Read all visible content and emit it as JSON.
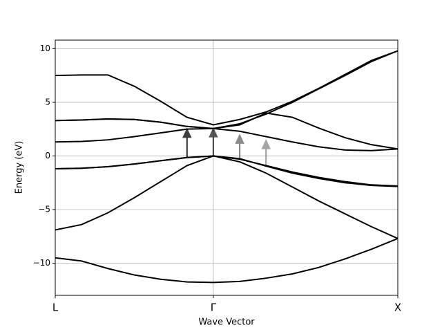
{
  "chart_data": {
    "type": "line",
    "xlabel": "Wave Vector",
    "ylabel": "Energy (eV)",
    "x": [
      0,
      1,
      2,
      3,
      4,
      5,
      6,
      7,
      8,
      9,
      10,
      11,
      12,
      13
    ],
    "xlim": [
      0,
      13
    ],
    "xticks": [
      {
        "value": 0,
        "label": "L"
      },
      {
        "value": 6,
        "label": "Γ"
      },
      {
        "value": 13,
        "label": "X"
      }
    ],
    "ylim": [
      -13,
      10.8
    ],
    "yticks": [
      {
        "value": -10,
        "label": "−10"
      },
      {
        "value": -5,
        "label": "−5"
      },
      0,
      5,
      10
    ],
    "grid": true,
    "series": [
      {
        "color": "#000000",
        "values": [
          -9.5,
          -9.8,
          -10.5,
          -11.1,
          -11.5,
          -11.75,
          -11.8,
          -11.7,
          -11.4,
          -11.0,
          -10.4,
          -9.6,
          -8.7,
          -7.7
        ]
      },
      {
        "color": "#000000",
        "values": [
          -6.9,
          -6.4,
          -5.3,
          -3.9,
          -2.4,
          -0.9,
          0,
          -0.55,
          -1.6,
          -2.9,
          -4.2,
          -5.4,
          -6.6,
          -7.7
        ]
      },
      {
        "color": "#000000",
        "values": [
          -1.2,
          -1.15,
          -1.0,
          -0.75,
          -0.45,
          -0.15,
          0,
          -0.3,
          -0.9,
          -1.5,
          -2.0,
          -2.4,
          -2.7,
          -2.8
        ]
      },
      {
        "color": "#000000",
        "values": [
          -1.2,
          -1.15,
          -1.0,
          -0.75,
          -0.45,
          -0.15,
          0,
          -0.25,
          -0.95,
          -1.6,
          -2.1,
          -2.5,
          -2.75,
          -2.85
        ]
      },
      {
        "color": "#000000",
        "values": [
          1.3,
          1.35,
          1.5,
          1.8,
          2.15,
          2.5,
          2.55,
          2.3,
          1.8,
          1.3,
          0.85,
          0.55,
          0.5,
          0.65
        ]
      },
      {
        "color": "#000000",
        "values": [
          3.3,
          3.35,
          3.45,
          3.4,
          3.15,
          2.75,
          2.55,
          2.9,
          4.0,
          3.6,
          2.6,
          1.7,
          1.05,
          0.65
        ]
      },
      {
        "color": "#000000",
        "values": [
          7.5,
          7.55,
          7.55,
          6.5,
          5.1,
          3.6,
          2.9,
          3.4,
          4.1,
          5.1,
          6.3,
          7.6,
          8.9,
          9.8
        ]
      },
      {
        "color": "#000000",
        "values": [
          3.3,
          3.35,
          3.45,
          3.4,
          3.15,
          2.75,
          2.55,
          3.0,
          3.9,
          5.0,
          6.25,
          7.5,
          8.8,
          9.8
        ]
      }
    ],
    "arrows": [
      {
        "x": 5,
        "from": -0.15,
        "to": 2.55,
        "alpha": 0.75
      },
      {
        "x": 6,
        "from": 0,
        "to": 2.6,
        "alpha": 0.65
      },
      {
        "x": 7,
        "from": -0.3,
        "to": 2.0,
        "alpha": 0.45
      },
      {
        "x": 8,
        "from": -0.9,
        "to": 1.5,
        "alpha": 0.35
      }
    ]
  }
}
